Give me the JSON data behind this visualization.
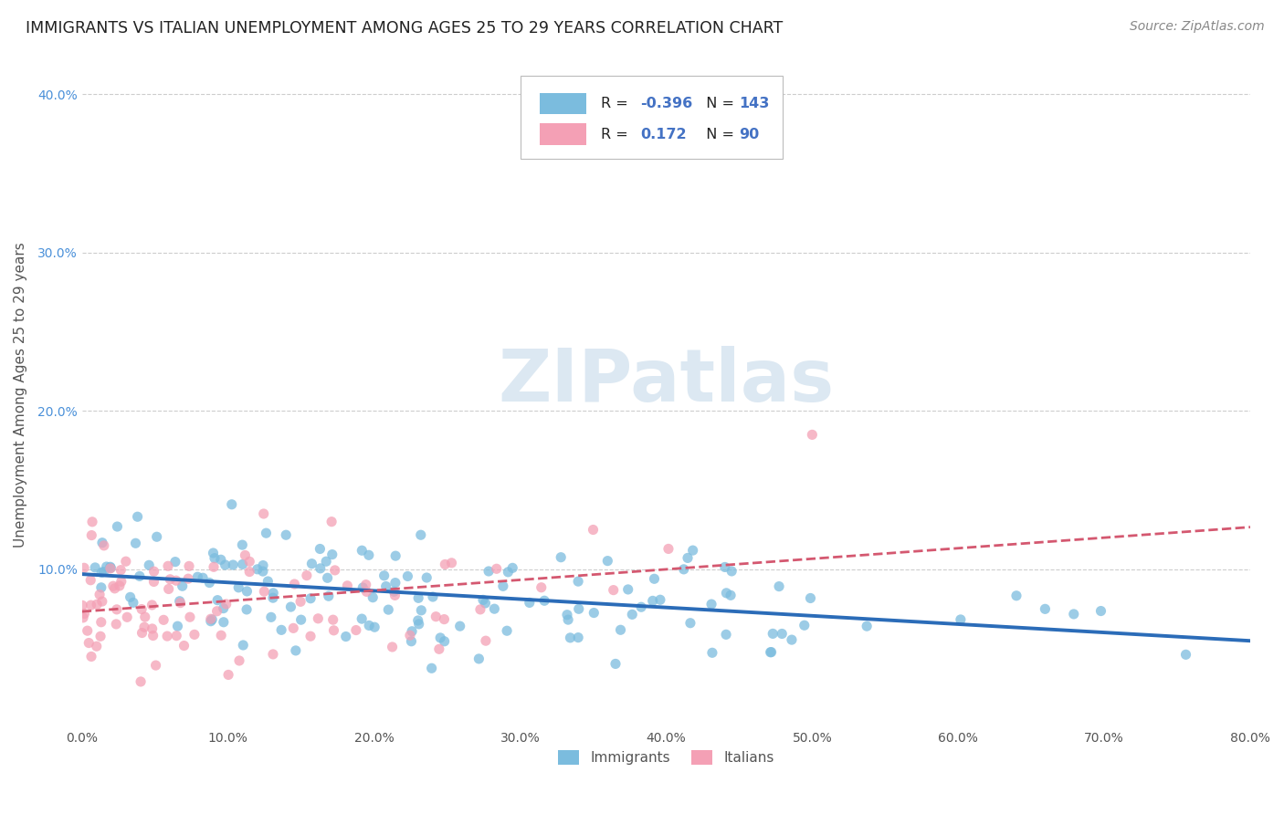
{
  "title": "IMMIGRANTS VS ITALIAN UNEMPLOYMENT AMONG AGES 25 TO 29 YEARS CORRELATION CHART",
  "source": "Source: ZipAtlas.com",
  "ylabel": "Unemployment Among Ages 25 to 29 years",
  "xlim": [
    0.0,
    0.8
  ],
  "ylim": [
    0.0,
    0.42
  ],
  "xticks": [
    0.0,
    0.1,
    0.2,
    0.3,
    0.4,
    0.5,
    0.6,
    0.7,
    0.8
  ],
  "xticklabels": [
    "0.0%",
    "10.0%",
    "20.0%",
    "30.0%",
    "40.0%",
    "50.0%",
    "60.0%",
    "70.0%",
    "80.0%"
  ],
  "yticks": [
    0.1,
    0.2,
    0.3,
    0.4
  ],
  "yticklabels": [
    "10.0%",
    "20.0%",
    "30.0%",
    "40.0%"
  ],
  "immigrants_color": "#7bbcde",
  "italians_color": "#f4a0b5",
  "immigrants_line_color": "#2b6cb8",
  "italians_line_color": "#d45870",
  "legend_R_immigrants": "-0.396",
  "legend_N_immigrants": "143",
  "legend_R_italians": "0.172",
  "legend_N_italians": "90",
  "R_immigrants": -0.396,
  "N_immigrants": 143,
  "R_italians": 0.172,
  "N_italians": 90,
  "background_color": "#ffffff",
  "grid_color": "#c8c8c8",
  "watermark_text": "ZIPatlas",
  "watermark_color": "#dce8f2",
  "title_fontsize": 12.5,
  "axis_label_fontsize": 11,
  "tick_fontsize": 10,
  "source_fontsize": 10,
  "legend_blue_text": "#4472c4",
  "legend_dark_text": "#222222"
}
